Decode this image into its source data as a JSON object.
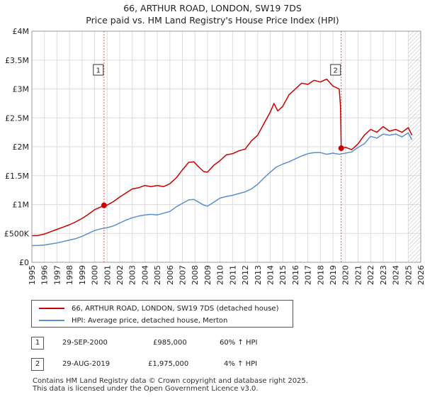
{
  "title_line1": "66, ARTHUR ROAD, LONDON, SW19 7DS",
  "title_line2": "Price paid vs. HM Land Registry's House Price Index (HPI)",
  "colors": {
    "property": "#cc0000",
    "hpi": "#5b8fce",
    "grid": "#dddddd",
    "vline": "#ee5555"
  },
  "legend": {
    "property_label": "66, ARTHUR ROAD, LONDON, SW19 7DS (detached house)",
    "hpi_label": "HPI: Average price, detached house, Merton"
  },
  "sales": [
    {
      "num": "1",
      "date": "29-SEP-2000",
      "price": "£985,000",
      "hpi": "60% ↑ HPI"
    },
    {
      "num": "2",
      "date": "29-AUG-2019",
      "price": "£1,975,000",
      "hpi": "4% ↑ HPI"
    }
  ],
  "footer_line1": "Contains HM Land Registry data © Crown copyright and database right 2025.",
  "footer_line2": "This data is licensed under the Open Government Licence v3.0.",
  "chart_data": {
    "type": "line",
    "xlim": [
      1995,
      2026
    ],
    "ylim": [
      0,
      4000000
    ],
    "y_ticks": [
      0,
      500000,
      1000000,
      1500000,
      2000000,
      2500000,
      3000000,
      3500000,
      4000000
    ],
    "y_tick_labels": [
      "£0",
      "£500K",
      "£1M",
      "£1.5M",
      "£2M",
      "£2.5M",
      "£3M",
      "£3.5M",
      "£4M"
    ],
    "x_ticks": [
      1995,
      1996,
      1997,
      1998,
      1999,
      2000,
      2001,
      2002,
      2003,
      2004,
      2005,
      2006,
      2007,
      2008,
      2009,
      2010,
      2011,
      2012,
      2013,
      2014,
      2015,
      2016,
      2017,
      2018,
      2019,
      2020,
      2021,
      2022,
      2023,
      2024,
      2025,
      2026
    ],
    "hatch_from": 2025.0,
    "markers": [
      {
        "label": "1",
        "x": 2000.75,
        "y": 985000
      },
      {
        "label": "2",
        "x": 2019.66,
        "y": 1975000
      }
    ],
    "series": [
      {
        "name": "66, ARTHUR ROAD, LONDON, SW19 7DS (detached house)",
        "x": [
          1995.0,
          1995.5,
          1996.0,
          1996.5,
          1997.0,
          1997.5,
          1998.0,
          1998.5,
          1999.0,
          1999.5,
          2000.0,
          2000.5,
          2000.75,
          2001.0,
          2001.5,
          2002.0,
          2002.5,
          2003.0,
          2003.5,
          2004.0,
          2004.5,
          2005.0,
          2005.5,
          2006.0,
          2006.5,
          2007.0,
          2007.5,
          2007.9,
          2008.3,
          2008.7,
          2009.0,
          2009.5,
          2010.0,
          2010.5,
          2011.0,
          2011.5,
          2012.0,
          2012.5,
          2013.0,
          2013.5,
          2014.0,
          2014.3,
          2014.6,
          2015.0,
          2015.5,
          2016.0,
          2016.5,
          2017.0,
          2017.5,
          2018.0,
          2018.5,
          2019.0,
          2019.5,
          2019.6,
          2019.66,
          2020.0,
          2020.5,
          2021.0,
          2021.5,
          2022.0,
          2022.5,
          2023.0,
          2023.5,
          2024.0,
          2024.5,
          2025.0,
          2025.3
        ],
        "y": [
          460000,
          465000,
          490000,
          530000,
          570000,
          610000,
          650000,
          700000,
          760000,
          830000,
          910000,
          960000,
          985000,
          990000,
          1050000,
          1130000,
          1200000,
          1270000,
          1290000,
          1330000,
          1310000,
          1330000,
          1310000,
          1360000,
          1460000,
          1600000,
          1730000,
          1740000,
          1650000,
          1570000,
          1560000,
          1680000,
          1760000,
          1860000,
          1880000,
          1930000,
          1960000,
          2100000,
          2200000,
          2400000,
          2600000,
          2750000,
          2620000,
          2700000,
          2900000,
          3000000,
          3100000,
          3080000,
          3150000,
          3120000,
          3170000,
          3050000,
          3000000,
          2700000,
          1975000,
          1990000,
          1950000,
          2050000,
          2200000,
          2300000,
          2250000,
          2350000,
          2270000,
          2300000,
          2250000,
          2330000,
          2200000
        ]
      },
      {
        "name": "HPI: Average price, detached house, Merton",
        "x": [
          1995.0,
          1995.5,
          1996.0,
          1996.5,
          1997.0,
          1997.5,
          1998.0,
          1998.5,
          1999.0,
          1999.5,
          2000.0,
          2000.5,
          2001.0,
          2001.5,
          2002.0,
          2002.5,
          2003.0,
          2003.5,
          2004.0,
          2004.5,
          2005.0,
          2005.5,
          2006.0,
          2006.5,
          2007.0,
          2007.5,
          2007.9,
          2008.3,
          2008.7,
          2009.0,
          2009.5,
          2010.0,
          2010.5,
          2011.0,
          2011.5,
          2012.0,
          2012.5,
          2013.0,
          2013.5,
          2014.0,
          2014.5,
          2015.0,
          2015.5,
          2016.0,
          2016.5,
          2017.0,
          2017.5,
          2018.0,
          2018.5,
          2019.0,
          2019.5,
          2020.0,
          2020.5,
          2021.0,
          2021.5,
          2022.0,
          2022.5,
          2023.0,
          2023.5,
          2024.0,
          2024.5,
          2025.0,
          2025.3
        ],
        "y": [
          290000,
          292000,
          300000,
          318000,
          335000,
          360000,
          385000,
          410000,
          450000,
          500000,
          550000,
          580000,
          600000,
          630000,
          680000,
          730000,
          770000,
          800000,
          820000,
          830000,
          820000,
          850000,
          880000,
          960000,
          1020000,
          1080000,
          1090000,
          1040000,
          990000,
          970000,
          1040000,
          1110000,
          1140000,
          1160000,
          1190000,
          1220000,
          1270000,
          1350000,
          1460000,
          1560000,
          1650000,
          1700000,
          1740000,
          1790000,
          1840000,
          1880000,
          1900000,
          1900000,
          1870000,
          1890000,
          1870000,
          1890000,
          1910000,
          1990000,
          2050000,
          2180000,
          2150000,
          2220000,
          2200000,
          2220000,
          2170000,
          2240000,
          2120000
        ]
      }
    ]
  }
}
